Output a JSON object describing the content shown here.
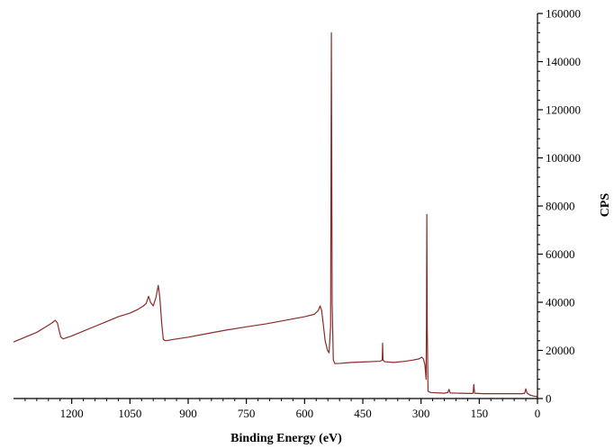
{
  "chart_data": {
    "type": "line",
    "title": "",
    "xlabel": "Binding Energy (eV)",
    "ylabel": "CPS",
    "xlim": [
      1350,
      0
    ],
    "ylim": [
      0,
      160000
    ],
    "x_reversed": true,
    "y_axis_side": "right",
    "grid": false,
    "legend": "none",
    "x_ticks": [
      1200,
      1050,
      900,
      750,
      600,
      450,
      300,
      150,
      0
    ],
    "y_ticks": [
      0,
      20000,
      40000,
      60000,
      80000,
      100000,
      120000,
      140000,
      160000
    ],
    "series": [
      {
        "color": "#8b2a2a",
        "points": [
          [
            1350,
            23500
          ],
          [
            1320,
            25500
          ],
          [
            1290,
            27500
          ],
          [
            1270,
            29500
          ],
          [
            1250,
            31500
          ],
          [
            1243,
            32500
          ],
          [
            1237,
            31500
          ],
          [
            1232,
            28000
          ],
          [
            1228,
            25500
          ],
          [
            1222,
            24800
          ],
          [
            1200,
            26000
          ],
          [
            1170,
            28000
          ],
          [
            1140,
            30000
          ],
          [
            1110,
            32000
          ],
          [
            1080,
            34000
          ],
          [
            1050,
            35500
          ],
          [
            1030,
            37000
          ],
          [
            1015,
            38500
          ],
          [
            1008,
            39500
          ],
          [
            1002,
            42500
          ],
          [
            997,
            40000
          ],
          [
            990,
            38500
          ],
          [
            983,
            42000
          ],
          [
            977,
            47000
          ],
          [
            973,
            42000
          ],
          [
            968,
            31000
          ],
          [
            964,
            24500
          ],
          [
            958,
            24000
          ],
          [
            940,
            24500
          ],
          [
            900,
            25500
          ],
          [
            850,
            27000
          ],
          [
            800,
            28500
          ],
          [
            750,
            29800
          ],
          [
            700,
            31000
          ],
          [
            650,
            32500
          ],
          [
            600,
            34000
          ],
          [
            575,
            35000
          ],
          [
            565,
            36500
          ],
          [
            560,
            38500
          ],
          [
            556,
            36500
          ],
          [
            552,
            31000
          ],
          [
            547,
            24000
          ],
          [
            541,
            20000
          ],
          [
            537,
            19000
          ],
          [
            533,
            30000
          ],
          [
            531,
            152000
          ],
          [
            529,
            40000
          ],
          [
            526,
            16000
          ],
          [
            522,
            14500
          ],
          [
            510,
            14600
          ],
          [
            480,
            15000
          ],
          [
            450,
            15200
          ],
          [
            420,
            15400
          ],
          [
            405,
            15500
          ],
          [
            400,
            16000
          ],
          [
            399,
            23000
          ],
          [
            398,
            16000
          ],
          [
            394,
            15300
          ],
          [
            370,
            15000
          ],
          [
            340,
            15500
          ],
          [
            320,
            16000
          ],
          [
            305,
            16500
          ],
          [
            298,
            17200
          ],
          [
            294,
            16500
          ],
          [
            290,
            14000
          ],
          [
            287,
            8000
          ],
          [
            286,
            30000
          ],
          [
            285,
            76500
          ],
          [
            284,
            30000
          ],
          [
            282,
            3000
          ],
          [
            275,
            2500
          ],
          [
            240,
            2200
          ],
          [
            231,
            2500
          ],
          [
            228,
            3800
          ],
          [
            225,
            2300
          ],
          [
            200,
            2200
          ],
          [
            170,
            2100
          ],
          [
            166,
            2200
          ],
          [
            164,
            5800
          ],
          [
            162,
            2200
          ],
          [
            140,
            2000
          ],
          [
            100,
            2000
          ],
          [
            60,
            2000
          ],
          [
            40,
            2000
          ],
          [
            33,
            2200
          ],
          [
            30,
            4000
          ],
          [
            27,
            2300
          ],
          [
            20,
            1500
          ],
          [
            10,
            1000
          ],
          [
            0,
            800
          ]
        ]
      }
    ]
  }
}
